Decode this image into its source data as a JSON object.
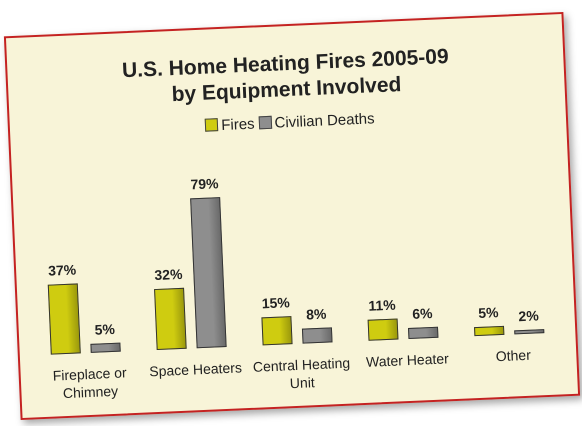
{
  "chart_data": {
    "type": "bar",
    "title": "U.S. Home Heating Fires 2005-09",
    "subtitle": "by Equipment Involved",
    "categories": [
      "Fireplace or Chimney",
      "Space Heaters",
      "Central Heating Unit",
      "Water Heater",
      "Other"
    ],
    "series": [
      {
        "name": "Fires",
        "color": "#cfcc10",
        "values": [
          37,
          32,
          15,
          11,
          5
        ],
        "value_labels": [
          "37%",
          "32%",
          "15%",
          "11%",
          "5%"
        ]
      },
      {
        "name": "Civilian Deaths",
        "color": "#8e8e8e",
        "values": [
          5,
          79,
          8,
          6,
          2
        ],
        "value_labels": [
          "5%",
          "79%",
          "8%",
          "6%",
          "2%"
        ]
      }
    ],
    "legend": "top"
  }
}
